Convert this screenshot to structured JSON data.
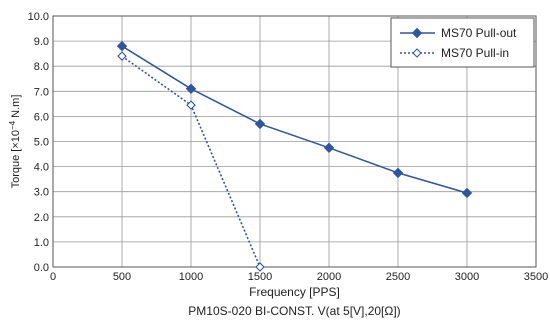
{
  "chart_data": {
    "type": "line",
    "xlabel": "Frequency [PPS]",
    "ylabel_prefix": "Torque [×10",
    "ylabel_exp": "−4",
    "ylabel_suffix": " N.m]",
    "caption": "PM10S-020 BI-CONST. V(at 5[V],20[Ω])",
    "xlim": [
      0,
      3500
    ],
    "ylim": [
      0,
      10
    ],
    "x_ticks": [
      0,
      500,
      1000,
      1500,
      2000,
      2500,
      3000,
      3500
    ],
    "y_ticks": [
      "0.0",
      "1.0",
      "2.0",
      "3.0",
      "4.0",
      "5.0",
      "6.0",
      "7.0",
      "8.0",
      "9.0",
      "10.0"
    ],
    "grid": true,
    "legend_position": "top-right",
    "colors": {
      "series": "#2f56a3",
      "grid": "#9a9a9a",
      "axis": "#555555"
    },
    "series": [
      {
        "name": "MS70  Pull-out",
        "line_style": "solid",
        "marker": "filled-diamond",
        "x": [
          500,
          1000,
          1500,
          2000,
          2500,
          3000
        ],
        "y": [
          8.8,
          7.1,
          5.7,
          4.75,
          3.75,
          2.95
        ]
      },
      {
        "name": "MS70  Pull-in",
        "line_style": "dotted",
        "marker": "hollow-diamond",
        "x": [
          500,
          1000,
          1500
        ],
        "y": [
          8.4,
          6.45,
          0.0
        ]
      }
    ]
  }
}
